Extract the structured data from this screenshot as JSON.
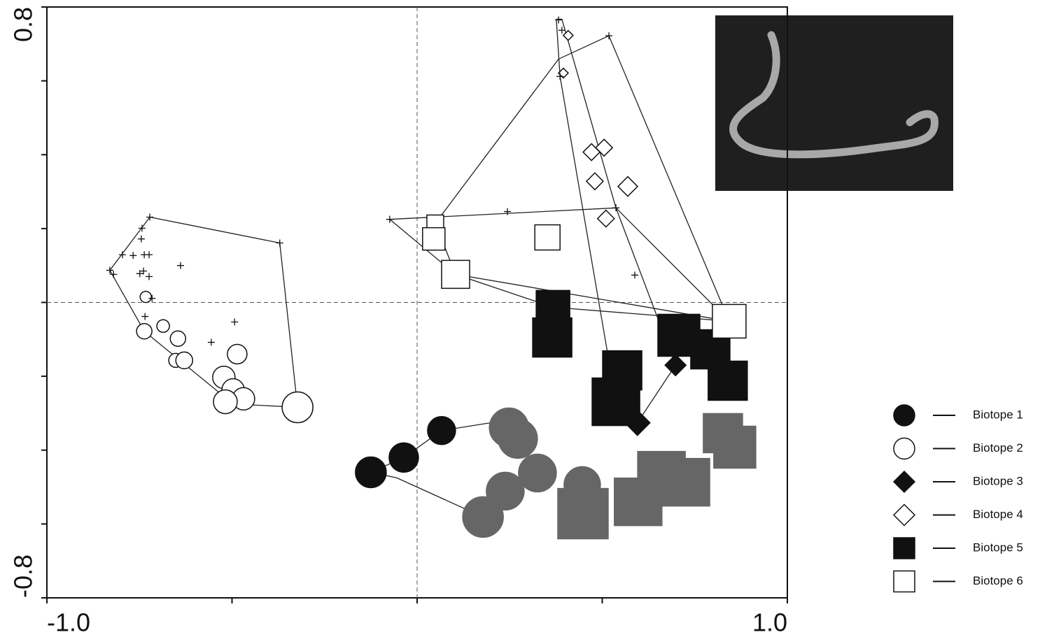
{
  "chart_data": {
    "type": "scatter",
    "xlim": [
      -1,
      1
    ],
    "ylim": [
      -0.8,
      0.8
    ],
    "xticks": [
      {
        "value": -1,
        "label": "-1.0"
      },
      {
        "value": -0.5,
        "label": null
      },
      {
        "value": 0,
        "label": null
      },
      {
        "value": 0.5,
        "label": null
      },
      {
        "value": 1,
        "label": "1.0"
      }
    ],
    "yticks": [
      {
        "value": -0.8,
        "label": "-0.8"
      },
      {
        "value": -0.6,
        "label": null
      },
      {
        "value": -0.4,
        "label": null
      },
      {
        "value": -0.2,
        "label": null
      },
      {
        "value": 0,
        "label": null
      },
      {
        "value": 0.2,
        "label": null
      },
      {
        "value": 0.4,
        "label": null
      },
      {
        "value": 0.6,
        "label": null
      },
      {
        "value": 0.8,
        "label": "0.8"
      }
    ],
    "zero_lines": true,
    "legend": "right",
    "series": [
      {
        "name": "Biotope 1",
        "marker": "circle",
        "filled": true,
        "color": "#111111",
        "x": [
          -0.125,
          -0.036,
          0.066,
          0.248,
          0.272,
          0.325,
          0.238,
          0.178,
          0.446
        ],
        "values": [
          -0.46,
          -0.42,
          -0.347,
          -0.339,
          -0.369,
          -0.462,
          -0.511,
          -0.581,
          -0.494
        ],
        "sizes": [
          22,
          21,
          20,
          28,
          28,
          27,
          27,
          29,
          26
        ],
        "point_colors": [
          "#111111",
          "#111111",
          "#111111",
          "#666666",
          "#666666",
          "#666666",
          "#666666",
          "#666666",
          "#666666"
        ]
      },
      {
        "name": "Biotope 2",
        "marker": "circle",
        "filled": false,
        "color": "#111111",
        "x": [
          -0.733,
          -0.686,
          -0.737,
          -0.646,
          -0.652,
          -0.629,
          -0.486,
          -0.522,
          -0.497,
          -0.469,
          -0.518,
          -0.323
        ],
        "values": [
          0.015,
          -0.064,
          -0.078,
          -0.098,
          -0.157,
          -0.157,
          -0.14,
          -0.203,
          -0.237,
          -0.261,
          -0.269,
          -0.284
        ],
        "sizes": [
          8,
          9,
          11,
          11,
          10,
          12,
          14,
          16,
          16,
          16,
          17,
          22
        ]
      },
      {
        "name": "Biotope 3",
        "marker": "diamond",
        "filled": true,
        "color": "#111111",
        "x": [
          0.698,
          0.595
        ],
        "values": [
          -0.17,
          -0.326
        ],
        "sizes": [
          15,
          18
        ]
      },
      {
        "name": "Biotope 4",
        "marker": "diamond",
        "filled": false,
        "color": "#111111",
        "x": [
          0.408,
          0.395,
          0.471,
          0.505,
          0.48,
          0.569,
          0.51
        ],
        "values": [
          0.723,
          0.621,
          0.407,
          0.419,
          0.328,
          0.314,
          0.227
        ],
        "sizes": [
          7,
          7,
          12,
          12,
          12,
          14,
          12
        ]
      },
      {
        "name": "Biotope 5",
        "marker": "square",
        "filled": true,
        "color": "#111111",
        "x": [
          0.367,
          0.365,
          0.554,
          0.537,
          0.707,
          0.792,
          0.839,
          0.826,
          0.858,
          0.66,
          0.726,
          0.597,
          0.448
        ],
        "values": [
          -0.013,
          -0.095,
          -0.184,
          -0.269,
          -0.089,
          -0.127,
          -0.212,
          -0.354,
          -0.392,
          -0.468,
          -0.487,
          -0.54,
          -0.572
        ],
        "sizes": [
          24,
          28,
          28,
          34,
          30,
          28,
          28,
          28,
          30,
          34,
          34,
          34,
          36
        ],
        "point_colors": [
          "#111111",
          "#111111",
          "#111111",
          "#111111",
          "#111111",
          "#111111",
          "#111111",
          "#666666",
          "#666666",
          "#666666",
          "#666666",
          "#666666",
          "#666666"
        ]
      },
      {
        "name": "Biotope 6",
        "marker": "square",
        "filled": false,
        "color": "#111111",
        "x": [
          0.049,
          0.045,
          0.104,
          0.352,
          0.843
        ],
        "values": [
          0.214,
          0.172,
          0.076,
          0.176,
          -0.051
        ],
        "sizes": [
          12,
          16,
          20,
          18,
          24
        ]
      }
    ],
    "crosses": {
      "marker": "plus",
      "color": "#111111",
      "x": [
        -0.83,
        -0.82,
        -0.796,
        -0.767,
        -0.743,
        -0.745,
        -0.737,
        -0.724,
        -0.749,
        -0.739,
        -0.724,
        -0.639,
        -0.716,
        -0.735,
        -0.493,
        -0.556,
        -0.371,
        -0.722,
        -0.074,
        0.244,
        0.382,
        0.391,
        0.386,
        0.518,
        0.537,
        0.588
      ],
      "values": [
        0.087,
        0.076,
        0.129,
        0.127,
        0.201,
        0.172,
        0.129,
        0.129,
        0.078,
        0.085,
        0.07,
        0.1,
        0.011,
        -0.038,
        -0.053,
        -0.108,
        0.161,
        0.231,
        0.225,
        0.246,
        0.765,
        0.737,
        0.612,
        0.722,
        0.256,
        0.074
      ]
    },
    "outlines": [
      {
        "x": [
          -0.722,
          -0.371,
          -0.323,
          -0.497,
          -0.737,
          -0.83,
          -0.722
        ],
        "values": [
          0.231,
          0.161,
          -0.284,
          -0.275,
          -0.078,
          0.087,
          0.231
        ]
      },
      {
        "x": [
          0.518,
          0.843,
          0.104,
          0.049,
          0.382,
          0.518
        ],
        "values": [
          0.722,
          -0.051,
          0.076,
          0.214,
          0.659,
          0.722
        ]
      },
      {
        "x": [
          0.376,
          0.391,
          0.537,
          0.698,
          0.595,
          0.537,
          0.386,
          0.376
        ],
        "values": [
          0.767,
          0.767,
          0.256,
          -0.17,
          -0.326,
          -0.269,
          0.612,
          0.767
        ]
      },
      {
        "x": [
          -0.074,
          0.537,
          0.843,
          0.367,
          0.104,
          -0.074
        ],
        "values": [
          0.225,
          0.256,
          -0.051,
          -0.013,
          0.076,
          0.225
        ]
      },
      {
        "x": [
          -0.125,
          -0.036,
          0.066,
          0.248,
          0.325,
          0.178,
          -0.055,
          -0.125
        ],
        "values": [
          -0.46,
          -0.42,
          -0.347,
          -0.318,
          -0.462,
          -0.581,
          -0.475,
          -0.46
        ]
      }
    ]
  }
}
